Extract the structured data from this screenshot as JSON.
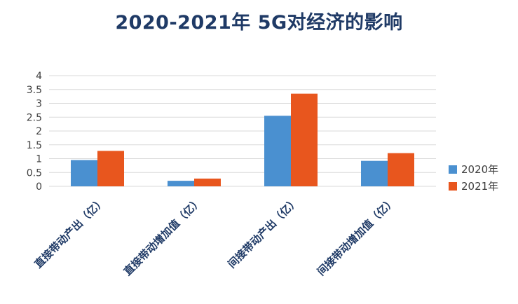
{
  "chart_data": {
    "type": "bar",
    "title": "2020-2021年 5G对经济的影响",
    "categories": [
      "直接带动产出（亿）",
      "直接带动增加值（亿）",
      "间接带动产出（亿）",
      "间接带动增加值（亿）"
    ],
    "series": [
      {
        "name": "2020年",
        "color": "#4a90d0",
        "values": [
          0.95,
          0.2,
          2.55,
          0.92
        ]
      },
      {
        "name": "2021年",
        "color": "#e8561e",
        "values": [
          1.28,
          0.28,
          3.35,
          1.2
        ]
      }
    ],
    "ylim": [
      0,
      4
    ],
    "yticks": [
      "0",
      "0.5",
      "1",
      "1.5",
      "2",
      "2.5",
      "3",
      "3.5",
      "4"
    ],
    "grid": true,
    "legend_position": "right"
  }
}
